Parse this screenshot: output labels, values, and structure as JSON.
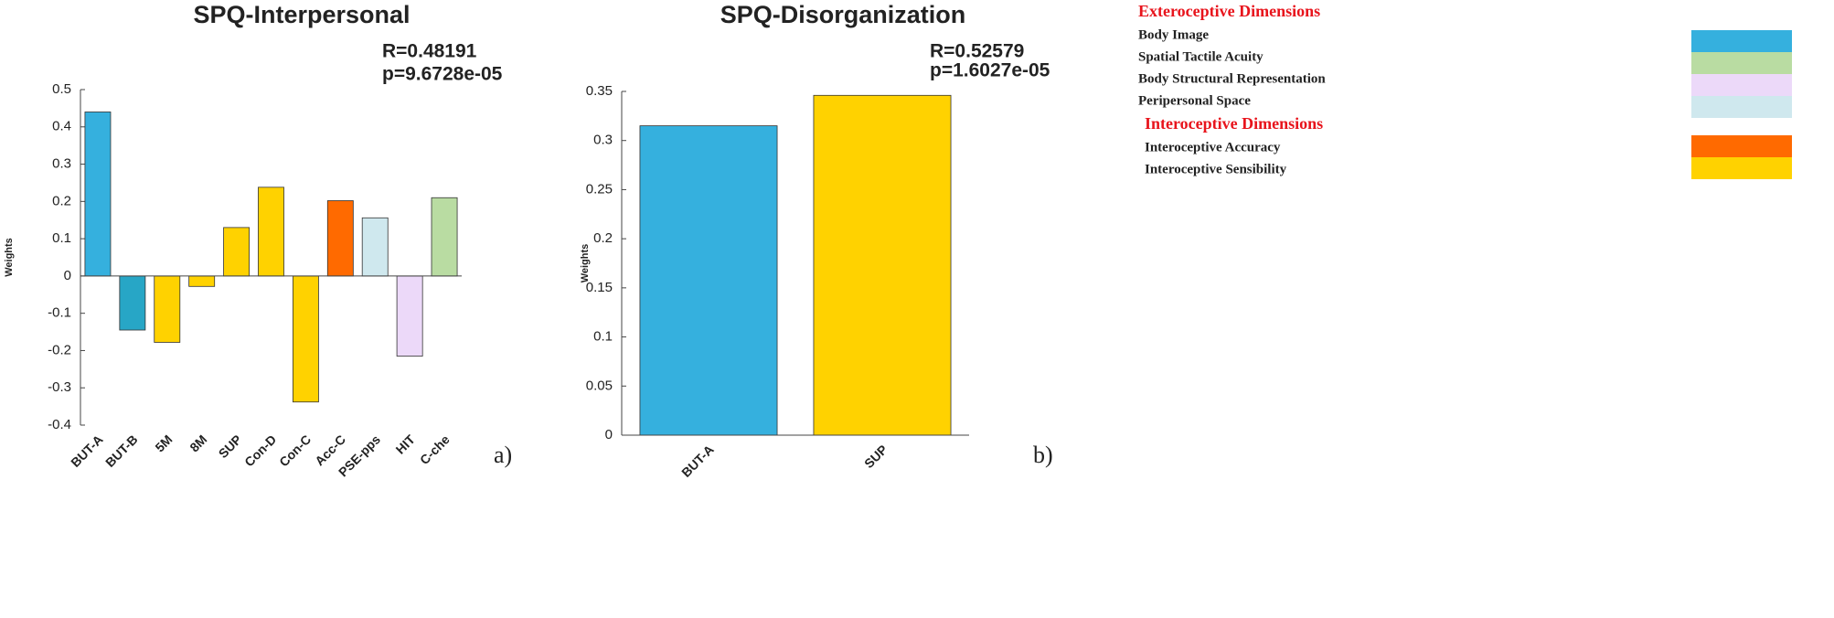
{
  "chart_data": [
    {
      "type": "bar",
      "title": "SPQ-Interpersonal",
      "y_label": "Weights",
      "annotations": [
        "R=0.48191",
        "p=9.6728e-05"
      ],
      "panel_label": "a)",
      "categories": [
        "BUT-A",
        "BUT-B",
        "5M",
        "8M",
        "SUP",
        "Con-D",
        "Con-C",
        "Acc-C",
        "PSE-pps",
        "HIT",
        "C-che"
      ],
      "values": [
        0.44,
        -0.145,
        -0.178,
        -0.028,
        0.13,
        0.238,
        -0.338,
        0.202,
        0.156,
        -0.215,
        0.21
      ],
      "colors": [
        "#35b0de",
        "#27a6c6",
        "#ffd200",
        "#ffd200",
        "#ffd200",
        "#ffd200",
        "#ffd200",
        "#ff6a00",
        "#cfe8ee",
        "#ecd9f9",
        "#b9dca2"
      ],
      "ylim": [
        -0.4,
        0.5
      ],
      "yticks": [
        -0.4,
        -0.3,
        -0.2,
        -0.1,
        0,
        0.1,
        0.2,
        0.3,
        0.4,
        0.5
      ]
    },
    {
      "type": "bar",
      "title": "SPQ-Disorganization",
      "y_label": "Weights",
      "annotations": [
        "R=0.52579",
        "p=1.6027e-05"
      ],
      "panel_label": "b)",
      "categories": [
        "BUT-A",
        "SUP"
      ],
      "values": [
        0.315,
        0.346
      ],
      "colors": [
        "#35b0de",
        "#ffd200"
      ],
      "ylim": [
        0,
        0.35
      ],
      "yticks": [
        0,
        0.05,
        0.1,
        0.15,
        0.2,
        0.25,
        0.3,
        0.35
      ]
    }
  ],
  "legend": {
    "groups": [
      {
        "title": "Exteroceptive Dimensions",
        "items": [
          {
            "label": "Body Image",
            "color": "#35b0de"
          },
          {
            "label": "Spatial Tactile Acuity",
            "color": "#b9dca2"
          },
          {
            "label": "Body Structural Representation",
            "color": "#ecd9f9"
          },
          {
            "label": "Peripersonal Space",
            "color": "#cfe8ee"
          }
        ]
      },
      {
        "title": "Interoceptive Dimensions",
        "items": [
          {
            "label": "Interoceptive Accuracy",
            "color": "#ff6a00"
          },
          {
            "label": "Interoceptive Sensibility",
            "color": "#ffd200"
          }
        ]
      }
    ]
  }
}
